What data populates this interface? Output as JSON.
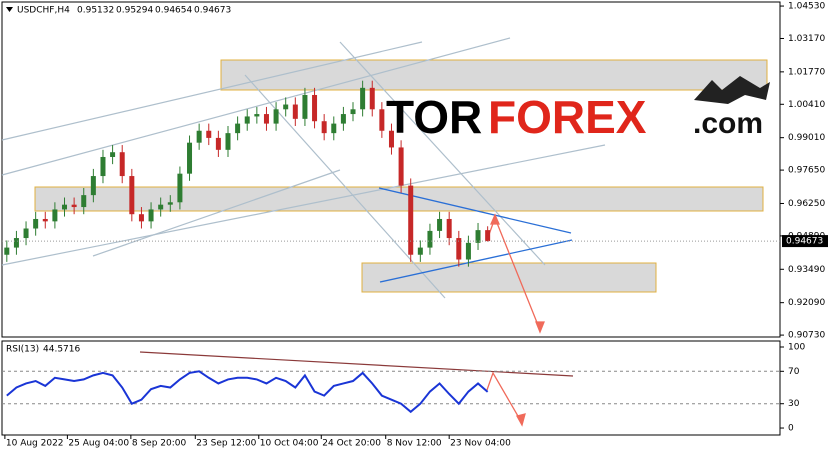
{
  "header": {
    "symbol": "USDCHF,H4"
  },
  "logo": {
    "tor": "TOR",
    "forex": "FOREX",
    "com": ".com"
  },
  "chart_data": [
    {
      "type": "candlestick",
      "open": [
        0.941,
        0.944,
        0.948,
        0.952,
        0.956,
        0.955,
        0.96,
        0.962,
        0.961,
        0.966,
        0.974,
        0.982,
        0.984,
        0.974,
        0.958,
        0.955,
        0.96,
        0.962,
        0.963,
        0.975,
        0.988,
        0.993,
        0.99,
        0.985,
        0.992,
        0.996,
        0.999,
        1.0,
        0.996,
        1.002,
        1.004,
        0.998,
        1.008,
        0.997,
        0.992,
        0.996,
        1.0,
        1.002,
        1.011,
        1.002,
        0.993,
        0.986,
        0.97,
        0.941,
        0.944,
        0.951,
        0.956,
        0.948,
        0.939,
        0.946,
        0.95132
      ],
      "high": [
        0.947,
        0.951,
        0.955,
        0.959,
        0.959,
        0.963,
        0.965,
        0.965,
        0.969,
        0.977,
        0.985,
        0.987,
        0.987,
        0.977,
        0.961,
        0.963,
        0.965,
        0.966,
        0.978,
        0.991,
        0.996,
        0.996,
        0.993,
        0.995,
        0.999,
        1.002,
        1.003,
        1.003,
        1.005,
        1.007,
        1.007,
        1.011,
        1.011,
        1.0,
        0.999,
        1.003,
        1.005,
        1.014,
        1.014,
        1.005,
        0.996,
        0.989,
        0.973,
        0.947,
        0.954,
        0.959,
        0.959,
        0.951,
        0.949,
        0.95432,
        0.95294
      ],
      "low": [
        0.938,
        0.941,
        0.945,
        0.949,
        0.952,
        0.952,
        0.957,
        0.958,
        0.958,
        0.963,
        0.971,
        0.979,
        0.971,
        0.955,
        0.952,
        0.952,
        0.957,
        0.959,
        0.96,
        0.972,
        0.985,
        0.987,
        0.982,
        0.982,
        0.989,
        0.993,
        0.996,
        0.993,
        0.993,
        0.999,
        0.995,
        0.995,
        0.994,
        0.989,
        0.989,
        0.993,
        0.997,
        0.999,
        0.999,
        0.99,
        0.983,
        0.967,
        0.938,
        0.938,
        0.941,
        0.948,
        0.945,
        0.936,
        0.936,
        0.943,
        0.94654
      ],
      "close": [
        0.944,
        0.948,
        0.952,
        0.956,
        0.955,
        0.96,
        0.962,
        0.961,
        0.966,
        0.974,
        0.982,
        0.984,
        0.974,
        0.958,
        0.955,
        0.96,
        0.962,
        0.963,
        0.975,
        0.988,
        0.993,
        0.99,
        0.985,
        0.992,
        0.996,
        0.999,
        1.0,
        0.996,
        1.002,
        1.004,
        0.998,
        1.008,
        0.997,
        0.992,
        0.996,
        1.0,
        1.002,
        1.011,
        1.002,
        0.993,
        0.986,
        0.97,
        0.941,
        0.944,
        0.951,
        0.956,
        0.948,
        0.939,
        0.946,
        0.95132,
        0.94673
      ],
      "up_color": "#2e7d32",
      "down_color": "#c62828",
      "xlim": [
        -0.5,
        80.4
      ],
      "xticks": [
        {
          "value": -0.2,
          "label": "10 Aug 2022"
        },
        {
          "value": 6.3,
          "label": "25 Aug 04:00"
        },
        {
          "value": 12.9,
          "label": "8 Sep 20:00"
        },
        {
          "value": 19.6,
          "label": "23 Sep 12:00"
        },
        {
          "value": 26.2,
          "label": "10 Oct 04:00"
        },
        {
          "value": 32.7,
          "label": "24 Oct 20:00"
        },
        {
          "value": 39.4,
          "label": "8 Nov 12:00"
        },
        {
          "value": 46,
          "label": "23 Nov 04:00"
        }
      ],
      "ylim": [
        0.9065,
        1.047
      ],
      "yticks": [
        {
          "value": 1.0453,
          "label": "1.04530"
        },
        {
          "value": 1.0317,
          "label": "1.03170"
        },
        {
          "value": 1.0177,
          "label": "1.01770"
        },
        {
          "value": 1.0041,
          "label": "1.00410"
        },
        {
          "value": 0.9901,
          "label": "0.99010"
        },
        {
          "value": 0.9765,
          "label": "0.97650"
        },
        {
          "value": 0.9625,
          "label": "0.96250"
        },
        {
          "value": 0.9489,
          "label": "0.94890"
        },
        {
          "value": 0.9349,
          "label": "0.93490"
        },
        {
          "value": 0.9209,
          "label": "0.92090"
        },
        {
          "value": 0.9073,
          "label": "0.90730"
        }
      ]
    },
    {
      "type": "line",
      "title": "RSI(13)",
      "current": 44.5716,
      "color": "#1a35d6",
      "values": [
        40,
        50,
        55,
        58,
        52,
        62,
        60,
        58,
        60,
        65,
        68,
        65,
        50,
        30,
        35,
        48,
        52,
        50,
        60,
        68,
        70,
        62,
        55,
        60,
        62,
        62,
        60,
        55,
        62,
        58,
        50,
        65,
        45,
        40,
        52,
        55,
        58,
        68,
        55,
        40,
        35,
        30,
        20,
        30,
        45,
        55,
        42,
        30,
        45,
        55,
        44.5716
      ],
      "ylim": [
        -8.6,
        107.4
      ],
      "yticks": [
        0,
        30,
        70,
        100
      ]
    }
  ]
}
